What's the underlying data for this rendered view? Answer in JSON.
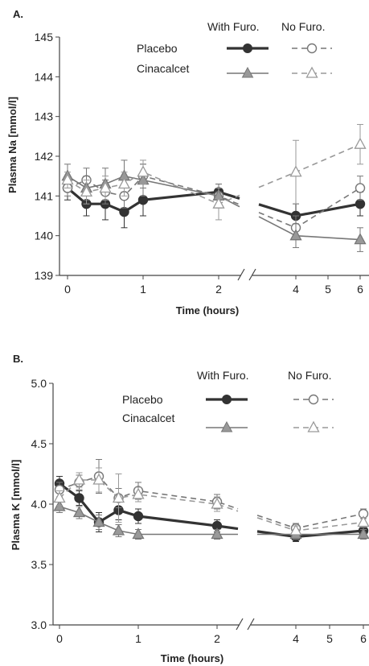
{
  "chart_data": [
    {
      "type": "line",
      "panel_label": "A.",
      "ylabel": "Plasma Na [mmol/l]",
      "xlabel": "Time (hours)",
      "ylim": [
        139,
        145
      ],
      "yticks": [
        "139",
        "140",
        "141",
        "142",
        "143",
        "144",
        "145"
      ],
      "xticks": [
        "0",
        "1",
        "2",
        "4",
        "5",
        "6"
      ],
      "x_break": "//",
      "legend": {
        "header_with": "With Furo.",
        "header_no": "No Furo.",
        "row_placebo": "Placebo",
        "row_cinacalcet": "Cinacalcet"
      },
      "series": [
        {
          "name": "Placebo With Furo.",
          "color": "#333333",
          "marker": "circle-filled",
          "line": "solid-thick",
          "x": [
            0,
            0.25,
            0.5,
            0.75,
            1,
            2,
            4,
            6
          ],
          "y": [
            141.2,
            140.8,
            140.8,
            140.6,
            140.9,
            141.1,
            140.5,
            140.8
          ],
          "err": [
            0.3,
            0.3,
            0.4,
            0.4,
            0.4,
            0.2,
            0.3,
            0.3
          ]
        },
        {
          "name": "Placebo No Furo.",
          "color": "#777777",
          "marker": "circle-open",
          "line": "dashed",
          "x": [
            0,
            0.25,
            0.5,
            0.75,
            1,
            2,
            4,
            6
          ],
          "y": [
            141.2,
            141.4,
            141.1,
            141.0,
            141.5,
            141.0,
            140.2,
            141.2
          ],
          "err": [
            0.2,
            0.3,
            0.3,
            0.3,
            0.3,
            0.3,
            0.3,
            0.3
          ]
        },
        {
          "name": "Cinacalcet With Furo.",
          "color": "#777777",
          "marker": "triangle-filled",
          "line": "solid",
          "x": [
            0,
            0.25,
            0.5,
            0.75,
            1,
            2,
            4,
            6
          ],
          "y": [
            141.5,
            141.2,
            141.3,
            141.5,
            141.4,
            141.0,
            140.0,
            139.9
          ],
          "err": [
            0.3,
            0.3,
            0.4,
            0.4,
            0.4,
            0.3,
            0.3,
            0.3
          ]
        },
        {
          "name": "Cinacalcet No Furo.",
          "color": "#999999",
          "marker": "triangle-open",
          "line": "dashed",
          "x": [
            0,
            0.25,
            0.5,
            0.75,
            1,
            2,
            4,
            6
          ],
          "y": [
            141.4,
            141.1,
            141.2,
            141.3,
            141.6,
            140.8,
            141.6,
            142.3
          ],
          "err": [
            0.2,
            0.3,
            0.3,
            0.3,
            0.3,
            0.4,
            0.8,
            0.5
          ]
        }
      ]
    },
    {
      "type": "line",
      "panel_label": "B.",
      "ylabel": "Plasma K [mmol/l]",
      "xlabel": "Time (hours)",
      "ylim": [
        3.0,
        5.0
      ],
      "yticks": [
        "3.0",
        "3.5",
        "4.0",
        "4.5",
        "5.0"
      ],
      "xticks": [
        "0",
        "1",
        "2",
        "4",
        "5",
        "6"
      ],
      "x_break": "//",
      "legend": {
        "header_with": "With Furo.",
        "header_no": "No Furo.",
        "row_placebo": "Placebo",
        "row_cinacalcet": "Cinacalcet"
      },
      "series": [
        {
          "name": "Placebo With Furo.",
          "color": "#333333",
          "marker": "circle-filled",
          "line": "solid-thick",
          "x": [
            0,
            0.25,
            0.5,
            0.75,
            1,
            2,
            4,
            6
          ],
          "y": [
            4.17,
            4.05,
            3.85,
            3.95,
            3.9,
            3.82,
            3.73,
            3.78
          ],
          "err": [
            0.06,
            0.06,
            0.08,
            0.08,
            0.06,
            0.05,
            0.04,
            0.04
          ]
        },
        {
          "name": "Placebo No Furo.",
          "color": "#777777",
          "marker": "circle-open",
          "line": "dashed",
          "x": [
            0,
            0.25,
            0.5,
            0.75,
            1,
            2,
            4,
            6
          ],
          "y": [
            4.12,
            4.18,
            4.23,
            4.05,
            4.11,
            4.02,
            3.8,
            3.92
          ],
          "err": [
            0.06,
            0.06,
            0.14,
            0.08,
            0.07,
            0.06,
            0.04,
            0.04
          ]
        },
        {
          "name": "Cinacalcet With Furo.",
          "color": "#777777",
          "marker": "triangle-filled",
          "line": "solid",
          "x": [
            0,
            0.25,
            0.5,
            0.75,
            1,
            2,
            4,
            6
          ],
          "y": [
            3.98,
            3.93,
            3.85,
            3.78,
            3.75,
            3.75,
            3.75,
            3.75
          ],
          "err": [
            0.05,
            0.05,
            0.06,
            0.05,
            0.04,
            0.04,
            0.04,
            0.04
          ]
        },
        {
          "name": "Cinacalcet No Furo.",
          "color": "#999999",
          "marker": "triangle-open",
          "line": "dashed",
          "x": [
            0,
            0.25,
            0.5,
            0.75,
            1,
            2,
            4,
            6
          ],
          "y": [
            4.05,
            4.2,
            4.2,
            4.05,
            4.08,
            4.0,
            3.78,
            3.85
          ],
          "err": [
            0.06,
            0.06,
            0.1,
            0.2,
            0.06,
            0.06,
            0.04,
            0.04
          ]
        }
      ]
    }
  ]
}
